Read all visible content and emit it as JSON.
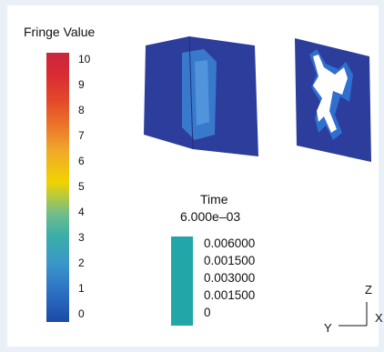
{
  "legend": {
    "title": "Fringe Value",
    "ticks": [
      "10",
      "9",
      "8",
      "7",
      "6",
      "5",
      "4",
      "3",
      "2",
      "1",
      "0"
    ],
    "gradient_colors": [
      "#1a4aa6",
      "#3aaea6",
      "#f1d300",
      "#ec7a2a",
      "#c9283c"
    ]
  },
  "time": {
    "label": "Time",
    "value": "6.000e–03",
    "swatch_color": "#22a6a8",
    "entries": [
      "0.006000",
      "0.001500",
      "0.003000",
      "0.001500",
      "0"
    ]
  },
  "axes": {
    "z": "Z",
    "y": "Y",
    "x": "X"
  },
  "model": {
    "panel_color": "#2c3d9c",
    "highlight_color": "#3a7fd0",
    "damage_color": "#ffffff"
  }
}
